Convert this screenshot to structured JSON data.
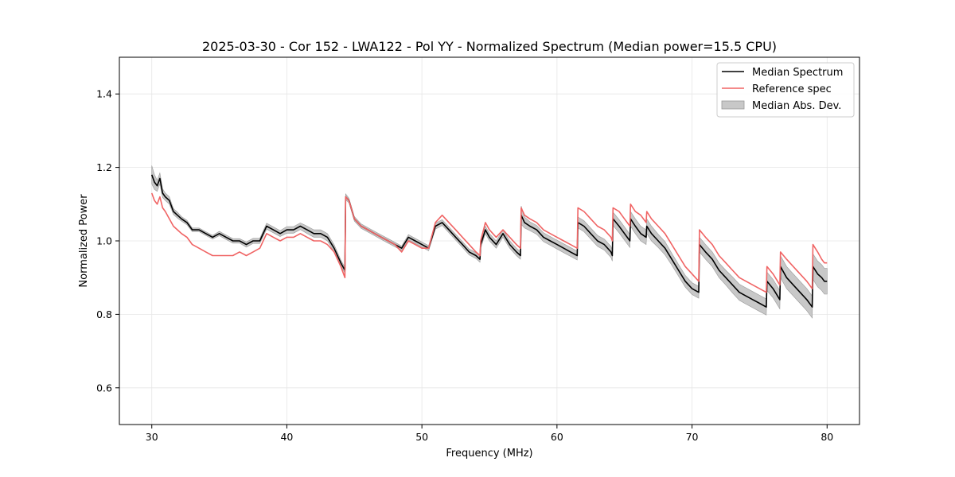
{
  "chart_data": {
    "type": "line",
    "title": "2025-03-30 - Cor 152 - LWA122 - Pol YY - Normalized Spectrum (Median power=15.5 CPU)",
    "xlabel": "Frequency (MHz)",
    "ylabel": "Normalized Power",
    "xlim": [
      27.6,
      82.4
    ],
    "ylim": [
      0.5,
      1.5
    ],
    "xticks": [
      30,
      40,
      50,
      60,
      70,
      80
    ],
    "yticks": [
      0.6,
      0.8,
      1.0,
      1.2,
      1.4
    ],
    "xtick_labels": [
      "30",
      "40",
      "50",
      "60",
      "70",
      "80"
    ],
    "ytick_labels": [
      "0.6",
      "0.8",
      "1.0",
      "1.2",
      "1.4"
    ],
    "grid": true,
    "legend_position": "top-right",
    "legend": [
      "Median Spectrum",
      "Reference spec",
      "Median Abs. Dev."
    ],
    "colors": {
      "median": "#000000",
      "reference": "#f06464",
      "mad_fill": "#c8c8c8",
      "mad_edge": "#999999"
    },
    "series": [
      {
        "name": "Median Spectrum",
        "x": [
          30.0,
          30.2,
          30.4,
          30.6,
          30.8,
          31.0,
          31.3,
          31.6,
          31.9,
          32.2,
          32.6,
          33.0,
          33.5,
          34.0,
          34.5,
          35.0,
          35.5,
          36.0,
          36.5,
          37.0,
          37.5,
          38.0,
          38.5,
          39.0,
          39.5,
          40.0,
          40.5,
          41.0,
          41.5,
          42.0,
          42.5,
          43.0,
          43.5,
          44.0,
          44.3,
          44.35,
          44.6,
          45.0,
          45.5,
          46.0,
          46.5,
          47.0,
          47.5,
          48.0,
          48.5,
          49.0,
          49.5,
          50.0,
          50.5,
          51.0,
          51.5,
          52.0,
          52.5,
          53.0,
          53.5,
          54.0,
          54.3,
          54.35,
          54.7,
          55.0,
          55.5,
          56.0,
          56.5,
          57.0,
          57.3,
          57.35,
          57.6,
          58.0,
          58.5,
          59.0,
          59.5,
          60.0,
          60.5,
          61.0,
          61.5,
          61.55,
          62.0,
          62.5,
          63.0,
          63.5,
          64.0,
          64.1,
          64.15,
          64.6,
          65.0,
          65.4,
          65.45,
          65.8,
          66.2,
          66.6,
          66.65,
          67.0,
          67.5,
          68.0,
          68.5,
          69.0,
          69.5,
          70.0,
          70.5,
          70.55,
          71.0,
          71.5,
          72.0,
          72.5,
          73.0,
          73.5,
          74.0,
          74.5,
          75.0,
          75.5,
          75.55,
          76.0,
          76.5,
          76.55,
          77.0,
          77.5,
          78.0,
          78.5,
          78.9,
          78.95,
          79.3,
          79.6,
          79.8,
          80.0
        ],
        "values": [
          1.18,
          1.16,
          1.15,
          1.17,
          1.13,
          1.12,
          1.11,
          1.08,
          1.07,
          1.06,
          1.05,
          1.03,
          1.03,
          1.02,
          1.01,
          1.02,
          1.01,
          1.0,
          1.0,
          0.99,
          1.0,
          1.0,
          1.04,
          1.03,
          1.02,
          1.03,
          1.03,
          1.04,
          1.03,
          1.02,
          1.02,
          1.01,
          0.98,
          0.94,
          0.92,
          1.12,
          1.11,
          1.06,
          1.04,
          1.03,
          1.02,
          1.01,
          1.0,
          0.99,
          0.98,
          1.01,
          1.0,
          0.99,
          0.98,
          1.04,
          1.05,
          1.03,
          1.01,
          0.99,
          0.97,
          0.96,
          0.95,
          0.99,
          1.03,
          1.01,
          0.99,
          1.02,
          0.99,
          0.97,
          0.96,
          1.07,
          1.05,
          1.04,
          1.03,
          1.01,
          1.0,
          0.99,
          0.98,
          0.97,
          0.96,
          1.05,
          1.04,
          1.02,
          1.0,
          0.99,
          0.97,
          0.96,
          1.06,
          1.04,
          1.02,
          1.0,
          1.06,
          1.04,
          1.02,
          1.01,
          1.04,
          1.02,
          1.0,
          0.98,
          0.95,
          0.92,
          0.89,
          0.87,
          0.86,
          0.99,
          0.97,
          0.95,
          0.92,
          0.9,
          0.88,
          0.86,
          0.85,
          0.84,
          0.83,
          0.82,
          0.89,
          0.87,
          0.84,
          0.93,
          0.9,
          0.88,
          0.86,
          0.84,
          0.82,
          0.93,
          0.91,
          0.9,
          0.89,
          0.89
        ]
      },
      {
        "name": "Reference spec",
        "x": [
          30.0,
          30.2,
          30.4,
          30.6,
          30.8,
          31.0,
          31.3,
          31.6,
          31.9,
          32.2,
          32.6,
          33.0,
          33.5,
          34.0,
          34.5,
          35.0,
          35.5,
          36.0,
          36.5,
          37.0,
          37.5,
          38.0,
          38.5,
          39.0,
          39.5,
          40.0,
          40.5,
          41.0,
          41.5,
          42.0,
          42.5,
          43.0,
          43.5,
          44.0,
          44.3,
          44.35,
          44.6,
          45.0,
          45.5,
          46.0,
          46.5,
          47.0,
          47.5,
          48.0,
          48.5,
          49.0,
          49.5,
          50.0,
          50.5,
          51.0,
          51.5,
          52.0,
          52.5,
          53.0,
          53.5,
          54.0,
          54.3,
          54.35,
          54.7,
          55.0,
          55.5,
          56.0,
          56.5,
          57.0,
          57.3,
          57.35,
          57.6,
          58.0,
          58.5,
          59.0,
          59.5,
          60.0,
          60.5,
          61.0,
          61.5,
          61.55,
          62.0,
          62.5,
          63.0,
          63.5,
          64.0,
          64.1,
          64.15,
          64.6,
          65.0,
          65.4,
          65.45,
          65.8,
          66.2,
          66.6,
          66.65,
          67.0,
          67.5,
          68.0,
          68.5,
          69.0,
          69.5,
          70.0,
          70.5,
          70.55,
          71.0,
          71.5,
          72.0,
          72.5,
          73.0,
          73.5,
          74.0,
          74.5,
          75.0,
          75.5,
          75.55,
          76.0,
          76.5,
          76.55,
          77.0,
          77.5,
          78.0,
          78.5,
          78.9,
          78.95,
          79.3,
          79.6,
          79.8,
          80.0
        ],
        "values": [
          1.13,
          1.11,
          1.1,
          1.12,
          1.09,
          1.08,
          1.06,
          1.04,
          1.03,
          1.02,
          1.01,
          0.99,
          0.98,
          0.97,
          0.96,
          0.96,
          0.96,
          0.96,
          0.97,
          0.96,
          0.97,
          0.98,
          1.02,
          1.01,
          1.0,
          1.01,
          1.01,
          1.02,
          1.01,
          1.0,
          1.0,
          0.99,
          0.97,
          0.93,
          0.9,
          1.12,
          1.11,
          1.06,
          1.04,
          1.03,
          1.02,
          1.01,
          1.0,
          0.99,
          0.97,
          1.0,
          0.99,
          0.98,
          0.98,
          1.05,
          1.07,
          1.05,
          1.03,
          1.01,
          0.99,
          0.97,
          0.96,
          1.0,
          1.05,
          1.03,
          1.01,
          1.03,
          1.01,
          0.99,
          0.98,
          1.09,
          1.07,
          1.06,
          1.05,
          1.03,
          1.02,
          1.01,
          1.0,
          0.99,
          0.98,
          1.09,
          1.08,
          1.06,
          1.04,
          1.03,
          1.01,
          1.0,
          1.09,
          1.08,
          1.06,
          1.04,
          1.1,
          1.08,
          1.07,
          1.05,
          1.08,
          1.06,
          1.04,
          1.02,
          0.99,
          0.96,
          0.93,
          0.91,
          0.89,
          1.03,
          1.01,
          0.99,
          0.96,
          0.94,
          0.92,
          0.9,
          0.89,
          0.88,
          0.87,
          0.86,
          0.93,
          0.91,
          0.88,
          0.97,
          0.95,
          0.93,
          0.91,
          0.89,
          0.87,
          0.99,
          0.97,
          0.95,
          0.94,
          0.94
        ]
      },
      {
        "name": "Median Abs. Dev.",
        "x": [
          30.0,
          30.2,
          30.4,
          30.6,
          30.8,
          31.0,
          31.3,
          31.6,
          31.9,
          32.2,
          32.6,
          33.0,
          33.5,
          34.0,
          34.5,
          35.0,
          35.5,
          36.0,
          36.5,
          37.0,
          37.5,
          38.0,
          38.5,
          39.0,
          39.5,
          40.0,
          40.5,
          41.0,
          41.5,
          42.0,
          42.5,
          43.0,
          43.5,
          44.0,
          44.3,
          44.35,
          44.6,
          45.0,
          45.5,
          46.0,
          46.5,
          47.0,
          47.5,
          48.0,
          48.5,
          49.0,
          49.5,
          50.0,
          50.5,
          51.0,
          51.5,
          52.0,
          52.5,
          53.0,
          53.5,
          54.0,
          54.3,
          54.35,
          54.7,
          55.0,
          55.5,
          56.0,
          56.5,
          57.0,
          57.3,
          57.35,
          57.6,
          58.0,
          58.5,
          59.0,
          59.5,
          60.0,
          60.5,
          61.0,
          61.5,
          61.55,
          62.0,
          62.5,
          63.0,
          63.5,
          64.0,
          64.1,
          64.15,
          64.6,
          65.0,
          65.4,
          65.45,
          65.8,
          66.2,
          66.6,
          66.65,
          67.0,
          67.5,
          68.0,
          68.5,
          69.0,
          69.5,
          70.0,
          70.5,
          70.55,
          71.0,
          71.5,
          72.0,
          72.5,
          73.0,
          73.5,
          74.0,
          74.5,
          75.0,
          75.5,
          75.55,
          76.0,
          76.5,
          76.55,
          77.0,
          77.5,
          78.0,
          78.5,
          78.9,
          78.95,
          79.3,
          79.6,
          79.8,
          80.0
        ],
        "dev": [
          0.025,
          0.02,
          0.015,
          0.015,
          0.012,
          0.01,
          0.01,
          0.008,
          0.008,
          0.006,
          0.006,
          0.005,
          0.005,
          0.005,
          0.005,
          0.006,
          0.006,
          0.006,
          0.006,
          0.007,
          0.007,
          0.007,
          0.008,
          0.008,
          0.008,
          0.009,
          0.009,
          0.009,
          0.01,
          0.01,
          0.01,
          0.01,
          0.01,
          0.008,
          0.008,
          0.008,
          0.006,
          0.006,
          0.006,
          0.006,
          0.006,
          0.006,
          0.006,
          0.006,
          0.006,
          0.007,
          0.007,
          0.007,
          0.007,
          0.008,
          0.008,
          0.008,
          0.008,
          0.008,
          0.008,
          0.008,
          0.008,
          0.01,
          0.01,
          0.01,
          0.01,
          0.01,
          0.01,
          0.01,
          0.01,
          0.025,
          0.015,
          0.012,
          0.012,
          0.012,
          0.012,
          0.012,
          0.012,
          0.012,
          0.012,
          0.015,
          0.015,
          0.015,
          0.015,
          0.015,
          0.015,
          0.015,
          0.018,
          0.018,
          0.018,
          0.018,
          0.02,
          0.02,
          0.02,
          0.02,
          0.02,
          0.02,
          0.018,
          0.018,
          0.016,
          0.016,
          0.016,
          0.016,
          0.016,
          0.02,
          0.02,
          0.02,
          0.02,
          0.02,
          0.022,
          0.022,
          0.022,
          0.022,
          0.022,
          0.022,
          0.025,
          0.025,
          0.025,
          0.03,
          0.03,
          0.03,
          0.03,
          0.03,
          0.03,
          0.035,
          0.035,
          0.035,
          0.035,
          0.035
        ]
      }
    ]
  }
}
